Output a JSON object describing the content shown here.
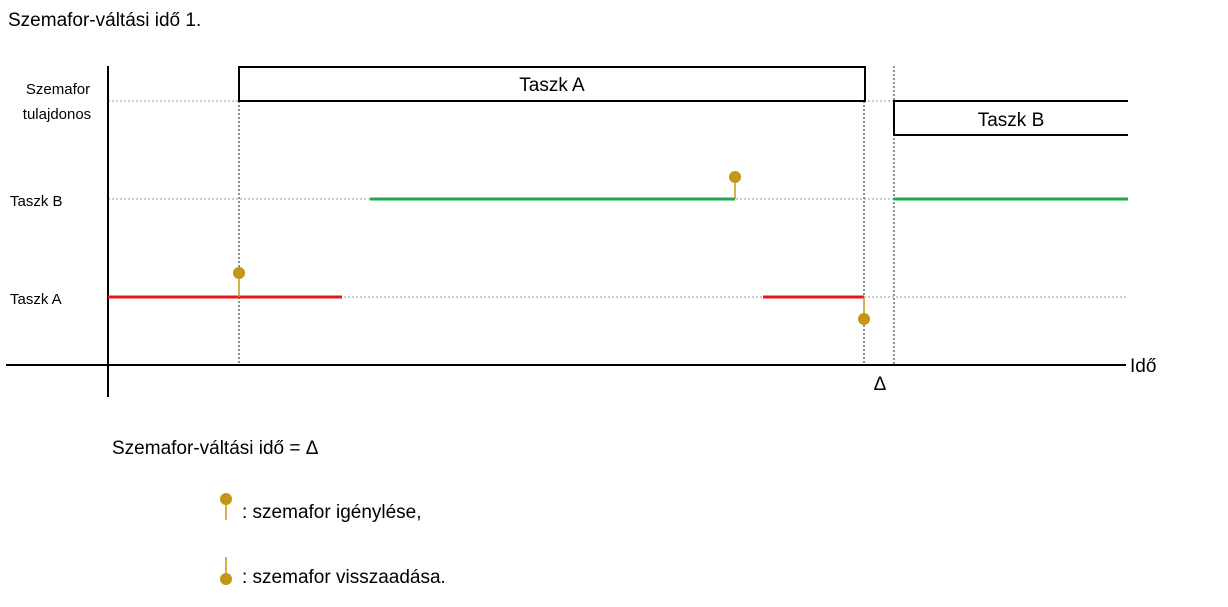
{
  "title": "Szemafor-váltási idő 1.",
  "rows": {
    "owner_line1": "Szemafor",
    "owner_line2": "tulajdonos",
    "task_b": "Taszk B",
    "task_a": "Taszk A"
  },
  "owner_boxes": {
    "first": "Taszk A",
    "second": "Taszk B"
  },
  "axis": {
    "time_label": "Idő",
    "delta_label": "Δ"
  },
  "formula": "Szemafor-váltási idő = Δ",
  "legend": {
    "request": ": szemafor igénylése,",
    "release": ": szemafor visszaadása."
  },
  "colors": {
    "task_a": "#e8141b",
    "task_b": "#1aa94c",
    "marker": "#c49516"
  }
}
